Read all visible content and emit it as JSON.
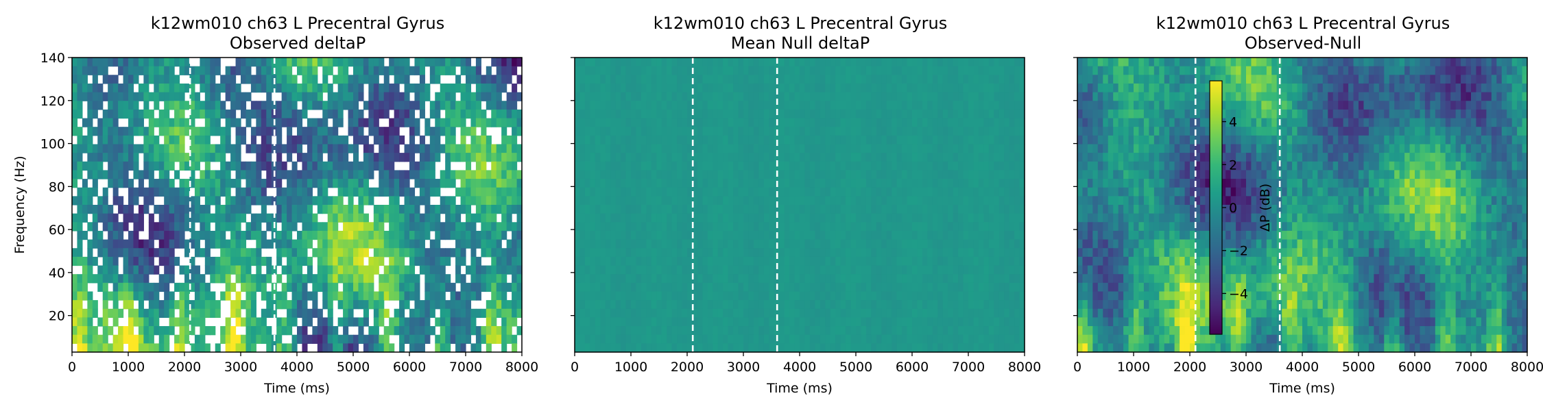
{
  "chart_data": [
    {
      "type": "heatmap",
      "title": "k12wm010 ch63 L Precentral Gyrus",
      "subtitle": "Observed deltaP",
      "xlabel": "Time (ms)",
      "ylabel": "Frequency (Hz)",
      "xlim": [
        0,
        8000
      ],
      "ylim": [
        3,
        140
      ],
      "xticks": [
        0,
        1000,
        2000,
        3000,
        4000,
        5000,
        6000,
        7000,
        8000
      ],
      "yticks": [
        20,
        40,
        60,
        80,
        100,
        120,
        140
      ],
      "markers_ms": [
        2100,
        3600
      ],
      "colormap": "viridis",
      "masked": true
    },
    {
      "type": "heatmap",
      "title": "k12wm010 ch63 L Precentral Gyrus",
      "subtitle": "Mean Null deltaP",
      "xlabel": "Time (ms)",
      "ylabel": "",
      "xlim": [
        0,
        8000
      ],
      "ylim": [
        3,
        140
      ],
      "xticks": [
        0,
        1000,
        2000,
        3000,
        4000,
        5000,
        6000,
        7000,
        8000
      ],
      "yticks": [
        20,
        40,
        60,
        80,
        100,
        120,
        140
      ],
      "markers_ms": [
        2100,
        3600
      ],
      "colormap": "viridis",
      "uniform_value_db": 0.3
    },
    {
      "type": "heatmap",
      "title": "k12wm010 ch63 L Precentral Gyrus",
      "subtitle": "Observed-Null",
      "xlabel": "Time (ms)",
      "ylabel": "",
      "xlim": [
        0,
        8000
      ],
      "ylim": [
        3,
        140
      ],
      "xticks": [
        0,
        1000,
        2000,
        3000,
        4000,
        5000,
        6000,
        7000,
        8000
      ],
      "yticks": [
        20,
        40,
        60,
        80,
        100,
        120,
        140
      ],
      "markers_ms": [
        2100,
        3600
      ],
      "colormap": "viridis",
      "colorbar": {
        "label": "ΔP (dB)",
        "range": [
          -5.9,
          5.9
        ],
        "ticks": [
          4,
          2,
          0,
          -2,
          -4
        ],
        "tick_labels": [
          "4",
          "2",
          "0",
          "−2",
          "−4"
        ]
      }
    }
  ],
  "colors": {
    "viridis": [
      "#440154",
      "#482878",
      "#3e4989",
      "#31688e",
      "#26828e",
      "#1f9e89",
      "#35b779",
      "#6ece58",
      "#b5de2b",
      "#fde725"
    ],
    "marker_line": "#ffffff",
    "axis": "#000000"
  }
}
